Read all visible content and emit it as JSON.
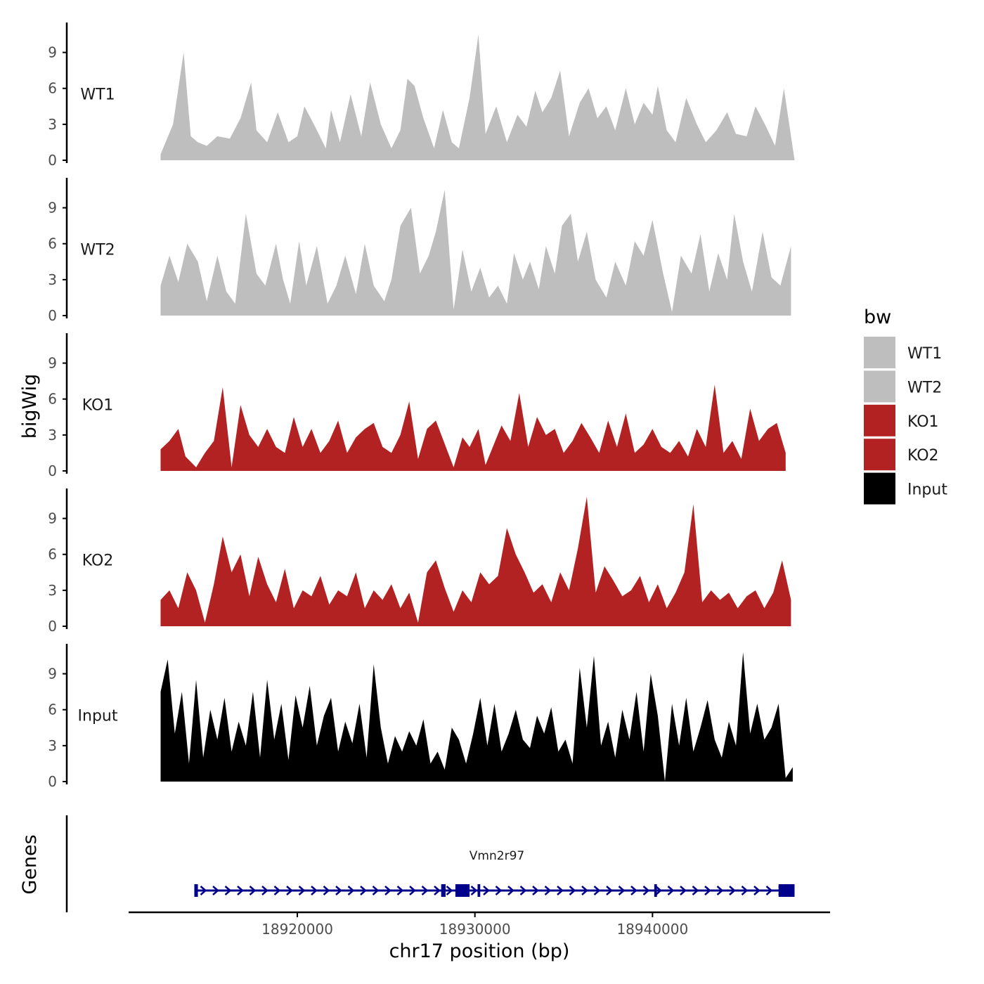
{
  "chart_data": {
    "type": "area",
    "title": "",
    "ylabel": "bigWig",
    "xlabel": "chr17 position (bp)",
    "genes_panel_label": "Genes",
    "ylim": [
      0,
      11.5
    ],
    "y_ticks": [
      0,
      3,
      6,
      9
    ],
    "y_tick_labels": [
      "0",
      "3",
      "6",
      "9"
    ],
    "xlim": [
      18910500,
      18950000
    ],
    "x_ticks": [
      18920000,
      18930000,
      18940000
    ],
    "x_tick_labels": [
      "18920000",
      "18930000",
      "18940000"
    ],
    "legend": {
      "title": "bw",
      "position": "right",
      "entries": [
        {
          "label": "WT1",
          "color": "#BEBEBE"
        },
        {
          "label": "WT2",
          "color": "#BEBEBE"
        },
        {
          "label": "KO1",
          "color": "#B22222"
        },
        {
          "label": "KO2",
          "color": "#B22222"
        },
        {
          "label": "Input",
          "color": "#000000"
        }
      ]
    },
    "series": [
      {
        "name": "WT1",
        "label": "WT1",
        "color": "#BEBEBE",
        "x": [
          18912300,
          18913000,
          18913600,
          18914000,
          18914400,
          18914900,
          18915500,
          18916200,
          18916800,
          18917400,
          18917700,
          18918300,
          18918900,
          18919500,
          18920000,
          18920400,
          18921000,
          18921600,
          18921900,
          18922400,
          18923000,
          18923600,
          18924100,
          18924700,
          18925300,
          18925800,
          18926200,
          18926600,
          18927100,
          18927700,
          18928200,
          18928700,
          18929100,
          18929700,
          18930200,
          18930600,
          18931200,
          18931800,
          18932400,
          18932900,
          18933400,
          18933800,
          18934300,
          18934800,
          18935300,
          18935900,
          18936400,
          18936900,
          18937400,
          18937900,
          18938500,
          18939000,
          18939500,
          18940000,
          18940300,
          18940800,
          18941300,
          18941900,
          18942500,
          18943000,
          18943600,
          18944200,
          18944700,
          18945300,
          18945800,
          18946400,
          18946900,
          18947400,
          18948000
        ],
        "values": [
          0.5,
          3.0,
          9.0,
          2.0,
          1.5,
          1.2,
          2.0,
          1.8,
          3.5,
          6.5,
          2.5,
          1.5,
          4.0,
          1.5,
          2.0,
          4.5,
          2.8,
          1.0,
          4.2,
          1.5,
          5.5,
          2.0,
          6.5,
          3.0,
          1.0,
          2.5,
          6.8,
          6.2,
          3.5,
          1.0,
          4.2,
          1.5,
          1.0,
          5.2,
          10.5,
          2.2,
          4.5,
          1.5,
          3.8,
          2.8,
          5.8,
          4.0,
          5.2,
          7.5,
          2.0,
          4.8,
          6.0,
          3.5,
          4.5,
          2.5,
          6.0,
          3.0,
          4.8,
          3.8,
          6.2,
          2.5,
          1.5,
          5.2,
          3.0,
          1.5,
          2.5,
          4.0,
          2.2,
          2.0,
          4.5,
          2.8,
          1.2,
          6.0,
          0
        ]
      },
      {
        "name": "WT2",
        "label": "WT2",
        "color": "#BEBEBE",
        "x": [
          18912300,
          18912800,
          18913300,
          18913800,
          18914400,
          18914900,
          18915500,
          18916000,
          18916500,
          18917100,
          18917700,
          18918200,
          18918800,
          18919200,
          18919600,
          18920100,
          18920500,
          18921100,
          18921700,
          18922200,
          18922700,
          18923300,
          18923800,
          18924300,
          18924900,
          18925300,
          18925800,
          18926400,
          18926900,
          18927400,
          18927800,
          18928300,
          18928800,
          18929300,
          18929800,
          18930300,
          18930800,
          18931300,
          18931800,
          18932200,
          18932700,
          18933100,
          18933600,
          18934000,
          18934500,
          18934900,
          18935400,
          18935800,
          18936300,
          18936800,
          18937400,
          18937900,
          18938500,
          18939000,
          18939500,
          18940000,
          18940600,
          18941100,
          18941600,
          18942200,
          18942700,
          18943200,
          18943700,
          18944200,
          18944600,
          18945100,
          18945600,
          18946200,
          18946700,
          18947200,
          18947800
        ],
        "values": [
          2.5,
          5.0,
          2.8,
          6.0,
          4.5,
          1.2,
          5.0,
          2.0,
          1.0,
          8.5,
          3.5,
          2.5,
          6.0,
          3.0,
          1.0,
          6.2,
          2.5,
          5.8,
          1.0,
          2.5,
          5.0,
          1.8,
          6.0,
          2.5,
          1.2,
          3.0,
          7.5,
          9.0,
          3.5,
          5.0,
          7.0,
          10.5,
          0.5,
          5.5,
          2.0,
          4.0,
          1.5,
          2.5,
          1.0,
          5.2,
          3.0,
          4.5,
          2.2,
          5.8,
          3.5,
          7.5,
          8.5,
          4.5,
          7.0,
          3.0,
          1.5,
          4.5,
          2.5,
          6.2,
          5.0,
          8.0,
          3.5,
          0.3,
          5.0,
          3.5,
          6.8,
          2.0,
          5.2,
          3.0,
          8.5,
          4.5,
          2.0,
          7.0,
          3.2,
          2.5,
          5.8
        ]
      },
      {
        "name": "KO1",
        "label": "KO1",
        "color": "#B22222",
        "x": [
          18912300,
          18912800,
          18913300,
          18913700,
          18914300,
          18914800,
          18915300,
          18915800,
          18916300,
          18916800,
          18917300,
          18917800,
          18918300,
          18918800,
          18919300,
          18919800,
          18920300,
          18920800,
          18921300,
          18921800,
          18922300,
          18922800,
          18923300,
          18923800,
          18924300,
          18924800,
          18925300,
          18925800,
          18926300,
          18926800,
          18927300,
          18927800,
          18928800,
          18929300,
          18929700,
          18930200,
          18930600,
          18931500,
          18932000,
          18932500,
          18933000,
          18933500,
          18934000,
          18934500,
          18935000,
          18935500,
          18936000,
          18936500,
          18937000,
          18937500,
          18938000,
          18938500,
          18939000,
          18939500,
          18940000,
          18940500,
          18941000,
          18941500,
          18942000,
          18942500,
          18943000,
          18943500,
          18944000,
          18944500,
          18945000,
          18945500,
          18946000,
          18946500,
          18947000,
          18947500
        ],
        "values": [
          1.8,
          2.5,
          3.5,
          1.2,
          0.3,
          1.5,
          2.5,
          7.0,
          0.3,
          5.5,
          3.0,
          2.0,
          3.5,
          2.0,
          1.5,
          4.5,
          2.0,
          3.5,
          1.5,
          2.5,
          4.2,
          1.5,
          2.8,
          3.5,
          4.0,
          2.0,
          1.5,
          3.0,
          5.8,
          1.0,
          3.5,
          4.2,
          0.3,
          2.8,
          2.0,
          3.5,
          0.5,
          3.8,
          2.5,
          6.5,
          2.0,
          4.5,
          3.0,
          3.5,
          1.5,
          2.5,
          4.0,
          2.8,
          1.5,
          4.2,
          2.0,
          4.8,
          1.5,
          2.2,
          3.5,
          2.0,
          1.5,
          2.5,
          1.2,
          3.5,
          2.0,
          7.2,
          1.5,
          2.5,
          1.0,
          5.2,
          2.5,
          3.5,
          4.0,
          1.5
        ]
      },
      {
        "name": "KO2",
        "label": "KO2",
        "color": "#B22222",
        "x": [
          18912300,
          18912800,
          18913300,
          18913800,
          18914300,
          18914800,
          18915300,
          18915800,
          18916300,
          18916800,
          18917300,
          18917800,
          18918300,
          18918800,
          18919300,
          18919800,
          18920300,
          18920800,
          18921300,
          18921800,
          18922300,
          18922800,
          18923300,
          18923800,
          18924300,
          18924800,
          18925300,
          18925800,
          18926300,
          18926800,
          18927300,
          18927800,
          18928300,
          18928800,
          18929300,
          18929800,
          18930300,
          18930800,
          18931300,
          18931800,
          18932300,
          18932800,
          18933300,
          18933800,
          18934300,
          18934800,
          18935300,
          18935800,
          18936300,
          18936800,
          18937300,
          18937800,
          18938300,
          18938800,
          18939300,
          18939800,
          18940300,
          18940800,
          18941300,
          18941800,
          18942300,
          18942800,
          18943300,
          18943800,
          18944300,
          18944800,
          18945300,
          18945800,
          18946300,
          18946800,
          18947300,
          18947800
        ],
        "values": [
          2.2,
          3.0,
          1.5,
          4.5,
          3.0,
          0.3,
          3.5,
          7.5,
          4.5,
          6.0,
          2.5,
          5.8,
          3.5,
          2.0,
          4.8,
          1.5,
          3.0,
          2.5,
          4.2,
          1.8,
          3.0,
          2.5,
          4.5,
          1.5,
          3.0,
          2.2,
          3.5,
          1.5,
          2.8,
          0.3,
          4.5,
          5.5,
          3.2,
          1.2,
          3.0,
          2.0,
          4.5,
          3.5,
          4.2,
          8.2,
          6.0,
          4.5,
          2.8,
          3.5,
          2.0,
          4.5,
          3.0,
          6.5,
          10.8,
          2.8,
          5.0,
          3.8,
          2.5,
          3.0,
          4.2,
          2.0,
          3.5,
          1.5,
          2.8,
          4.5,
          10.2,
          2.0,
          3.0,
          2.2,
          2.8,
          1.5,
          2.5,
          3.0,
          1.5,
          2.8,
          5.5,
          2.2
        ]
      },
      {
        "name": "Input",
        "label": "Input",
        "color": "#000000",
        "x": [
          18912300,
          18912700,
          18913100,
          18913500,
          18913900,
          18914300,
          18914700,
          18915100,
          18915500,
          18915900,
          18916300,
          18916700,
          18917100,
          18917500,
          18917900,
          18918300,
          18918700,
          18919100,
          18919500,
          18919900,
          18920300,
          18920700,
          18921100,
          18921500,
          18921900,
          18922300,
          18922700,
          18923100,
          18923500,
          18923900,
          18924300,
          18924700,
          18925100,
          18925500,
          18925900,
          18926300,
          18926700,
          18927100,
          18927500,
          18927900,
          18928300,
          18928700,
          18929100,
          18929500,
          18929900,
          18930300,
          18930700,
          18931100,
          18931500,
          18931900,
          18932300,
          18932700,
          18933100,
          18933500,
          18933900,
          18934300,
          18934700,
          18935100,
          18935500,
          18935900,
          18936300,
          18936700,
          18937100,
          18937500,
          18937900,
          18938300,
          18938700,
          18939100,
          18939500,
          18939900,
          18940300,
          18940700,
          18941100,
          18941500,
          18941900,
          18942300,
          18942700,
          18943100,
          18943500,
          18943900,
          18944300,
          18944700,
          18945100,
          18945500,
          18945900,
          18946300,
          18946700,
          18947100,
          18947500,
          18947900
        ],
        "values": [
          7.5,
          10.2,
          4.0,
          7.5,
          1.5,
          8.5,
          2.0,
          6.0,
          3.5,
          7.0,
          2.5,
          5.0,
          3.0,
          7.5,
          2.0,
          8.5,
          3.5,
          6.5,
          1.8,
          7.2,
          4.5,
          8.0,
          3.0,
          5.5,
          7.0,
          2.5,
          5.0,
          3.2,
          6.5,
          2.0,
          9.8,
          4.5,
          1.5,
          3.8,
          2.5,
          4.2,
          3.0,
          5.2,
          1.5,
          2.5,
          1.0,
          4.5,
          3.5,
          1.5,
          4.0,
          7.0,
          3.0,
          6.5,
          2.5,
          4.0,
          6.0,
          3.5,
          2.8,
          5.5,
          4.0,
          6.2,
          2.5,
          3.5,
          1.5,
          9.5,
          4.5,
          10.5,
          3.0,
          5.0,
          2.0,
          6.0,
          3.5,
          7.5,
          2.5,
          9.0,
          5.5,
          0,
          6.5,
          3.0,
          7.0,
          2.5,
          4.5,
          6.8,
          3.5,
          2.0,
          5.0,
          3.0,
          10.8,
          4.0,
          6.5,
          3.5,
          4.5,
          6.5,
          0.3,
          1.2
        ]
      }
    ],
    "gene_track": {
      "gene_name": "Vmn2r97",
      "strand": "+",
      "color": "#00008B",
      "start": 18914200,
      "end": 18948000,
      "exons": [
        {
          "start": 18914200,
          "end": 18914400
        },
        {
          "start": 18928100,
          "end": 18928350
        },
        {
          "start": 18928900,
          "end": 18929700
        },
        {
          "start": 18930150,
          "end": 18930300
        },
        {
          "start": 18940100,
          "end": 18940250
        },
        {
          "start": 18947100,
          "end": 18948000
        }
      ]
    }
  }
}
